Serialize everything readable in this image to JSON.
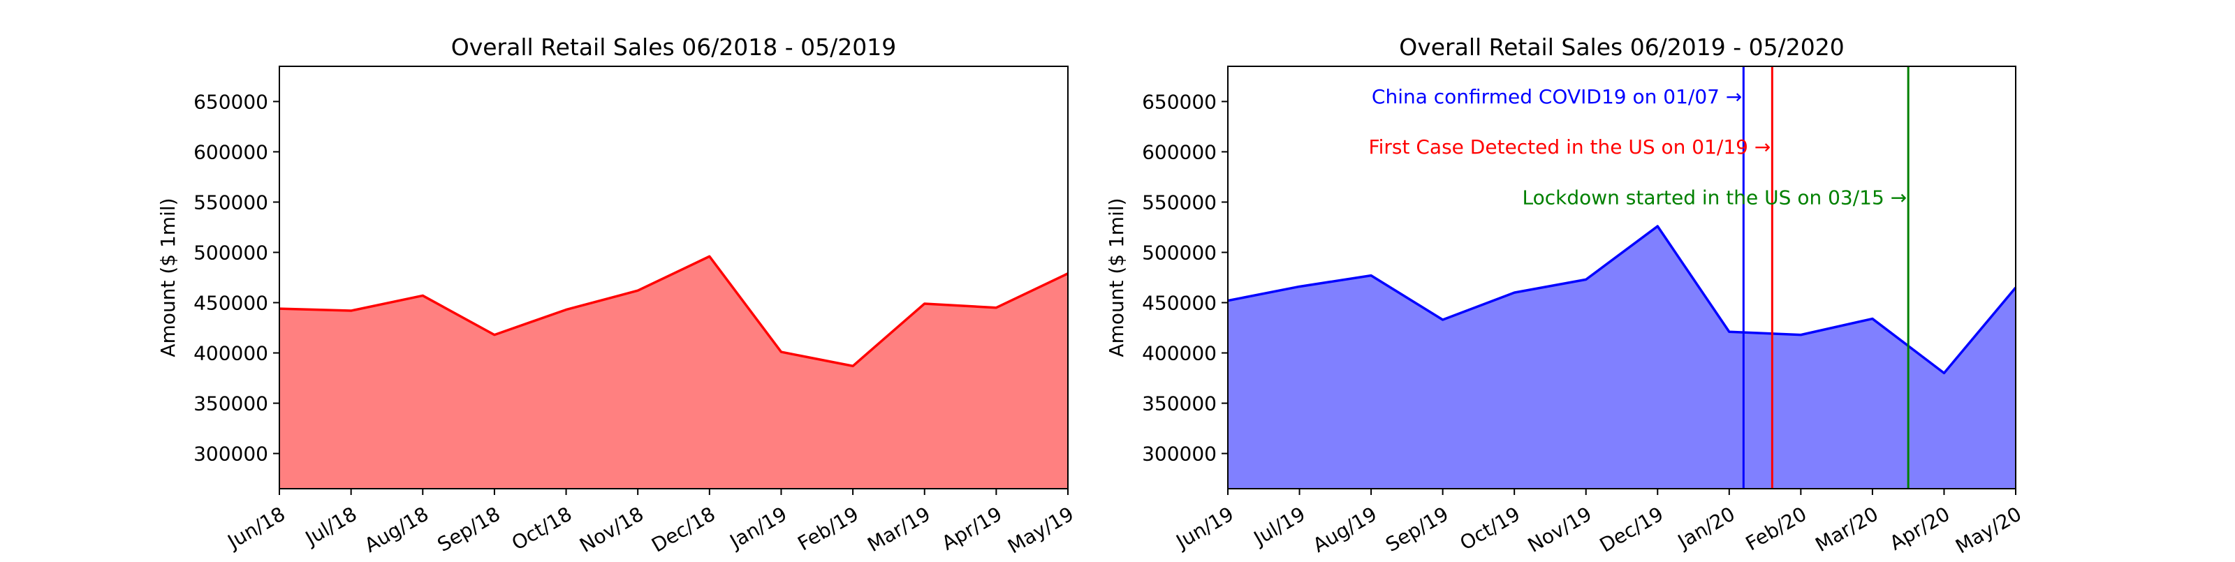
{
  "chart_data": [
    {
      "type": "area",
      "title": "Overall Retail Sales 06/2018 - 05/2019",
      "xlabel": "",
      "ylabel": "Amount ($ 1mil)",
      "categories": [
        "Jun/18",
        "Jul/18",
        "Aug/18",
        "Sep/18",
        "Oct/18",
        "Nov/18",
        "Dec/18",
        "Jan/19",
        "Feb/19",
        "Mar/19",
        "Apr/19",
        "May/19"
      ],
      "values": [
        444000,
        442000,
        457000,
        418000,
        443000,
        462000,
        496000,
        401000,
        387000,
        449000,
        445000,
        479000
      ],
      "ylim": [
        265000,
        685000
      ],
      "yticks": [
        300000,
        350000,
        400000,
        450000,
        500000,
        550000,
        600000,
        650000
      ],
      "grid": false,
      "color": "#ff0000",
      "fill_color": "#ff8080",
      "annotations": []
    },
    {
      "type": "area",
      "title": "Overall Retail Sales 06/2019 - 05/2020",
      "xlabel": "",
      "ylabel": "Amount ($ 1mil)",
      "categories": [
        "Jun/19",
        "Jul/19",
        "Aug/19",
        "Sep/19",
        "Oct/19",
        "Nov/19",
        "Dec/19",
        "Jan/20",
        "Feb/20",
        "Mar/20",
        "Apr/20",
        "May/20"
      ],
      "values": [
        452000,
        466000,
        477000,
        433000,
        460000,
        473000,
        526000,
        421000,
        418000,
        434000,
        380000,
        465000
      ],
      "ylim": [
        265000,
        685000
      ],
      "yticks": [
        300000,
        350000,
        400000,
        450000,
        500000,
        550000,
        600000,
        650000
      ],
      "grid": false,
      "color": "#0000ff",
      "fill_color": "#8080ff",
      "annotations": [
        {
          "text": "China confirmed COVID19 on 01/07 →",
          "x": 7.2,
          "y": 655000,
          "color": "#0000ff"
        },
        {
          "text": "First Case Detected in the US on 01/19 →",
          "x": 7.6,
          "y": 605000,
          "color": "#ff0000"
        },
        {
          "text": "Lockdown started in the US on 03/15 →",
          "x": 9.5,
          "y": 555000,
          "color": "#008000"
        }
      ],
      "vlines": [
        {
          "x": 7.2,
          "color": "#0000ff"
        },
        {
          "x": 7.6,
          "color": "#ff0000"
        },
        {
          "x": 9.5,
          "color": "#008000"
        }
      ]
    }
  ]
}
